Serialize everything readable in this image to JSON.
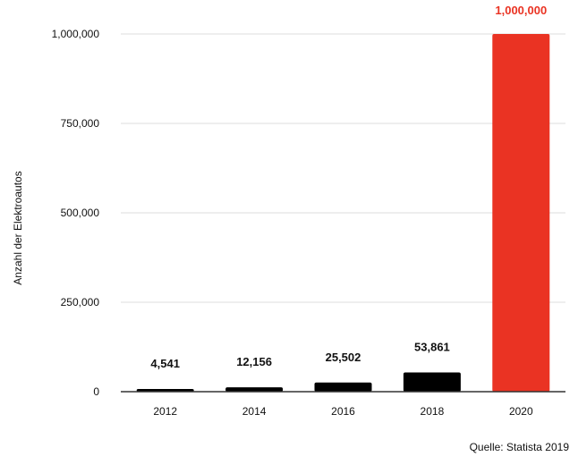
{
  "chart_data": {
    "type": "bar",
    "title": "",
    "xlabel": "",
    "ylabel": "Anzahl der Elektroautos",
    "categories": [
      "2012",
      "2014",
      "2016",
      "2018",
      "2020"
    ],
    "series": [
      {
        "values": [
          4541,
          12156,
          25502,
          53861,
          1000000
        ],
        "colors": [
          "#000000",
          "#000000",
          "#000000",
          "#000000",
          "#ea3323"
        ],
        "data_labels": [
          "4,541",
          "12,156",
          "25,502",
          "53,861",
          "1,000,000"
        ],
        "data_label_colors": [
          "#111111",
          "#111111",
          "#111111",
          "#111111",
          "#ea3323"
        ]
      }
    ],
    "y_ticks": [
      0,
      250000,
      500000,
      750000,
      1000000
    ],
    "y_tick_labels": [
      "0",
      "250,000",
      "500,000",
      "750,000",
      "1,000,000"
    ],
    "ylim": [
      0,
      1000000
    ],
    "grid": true,
    "legend": "none"
  },
  "source": "Quelle: Statista 2019"
}
